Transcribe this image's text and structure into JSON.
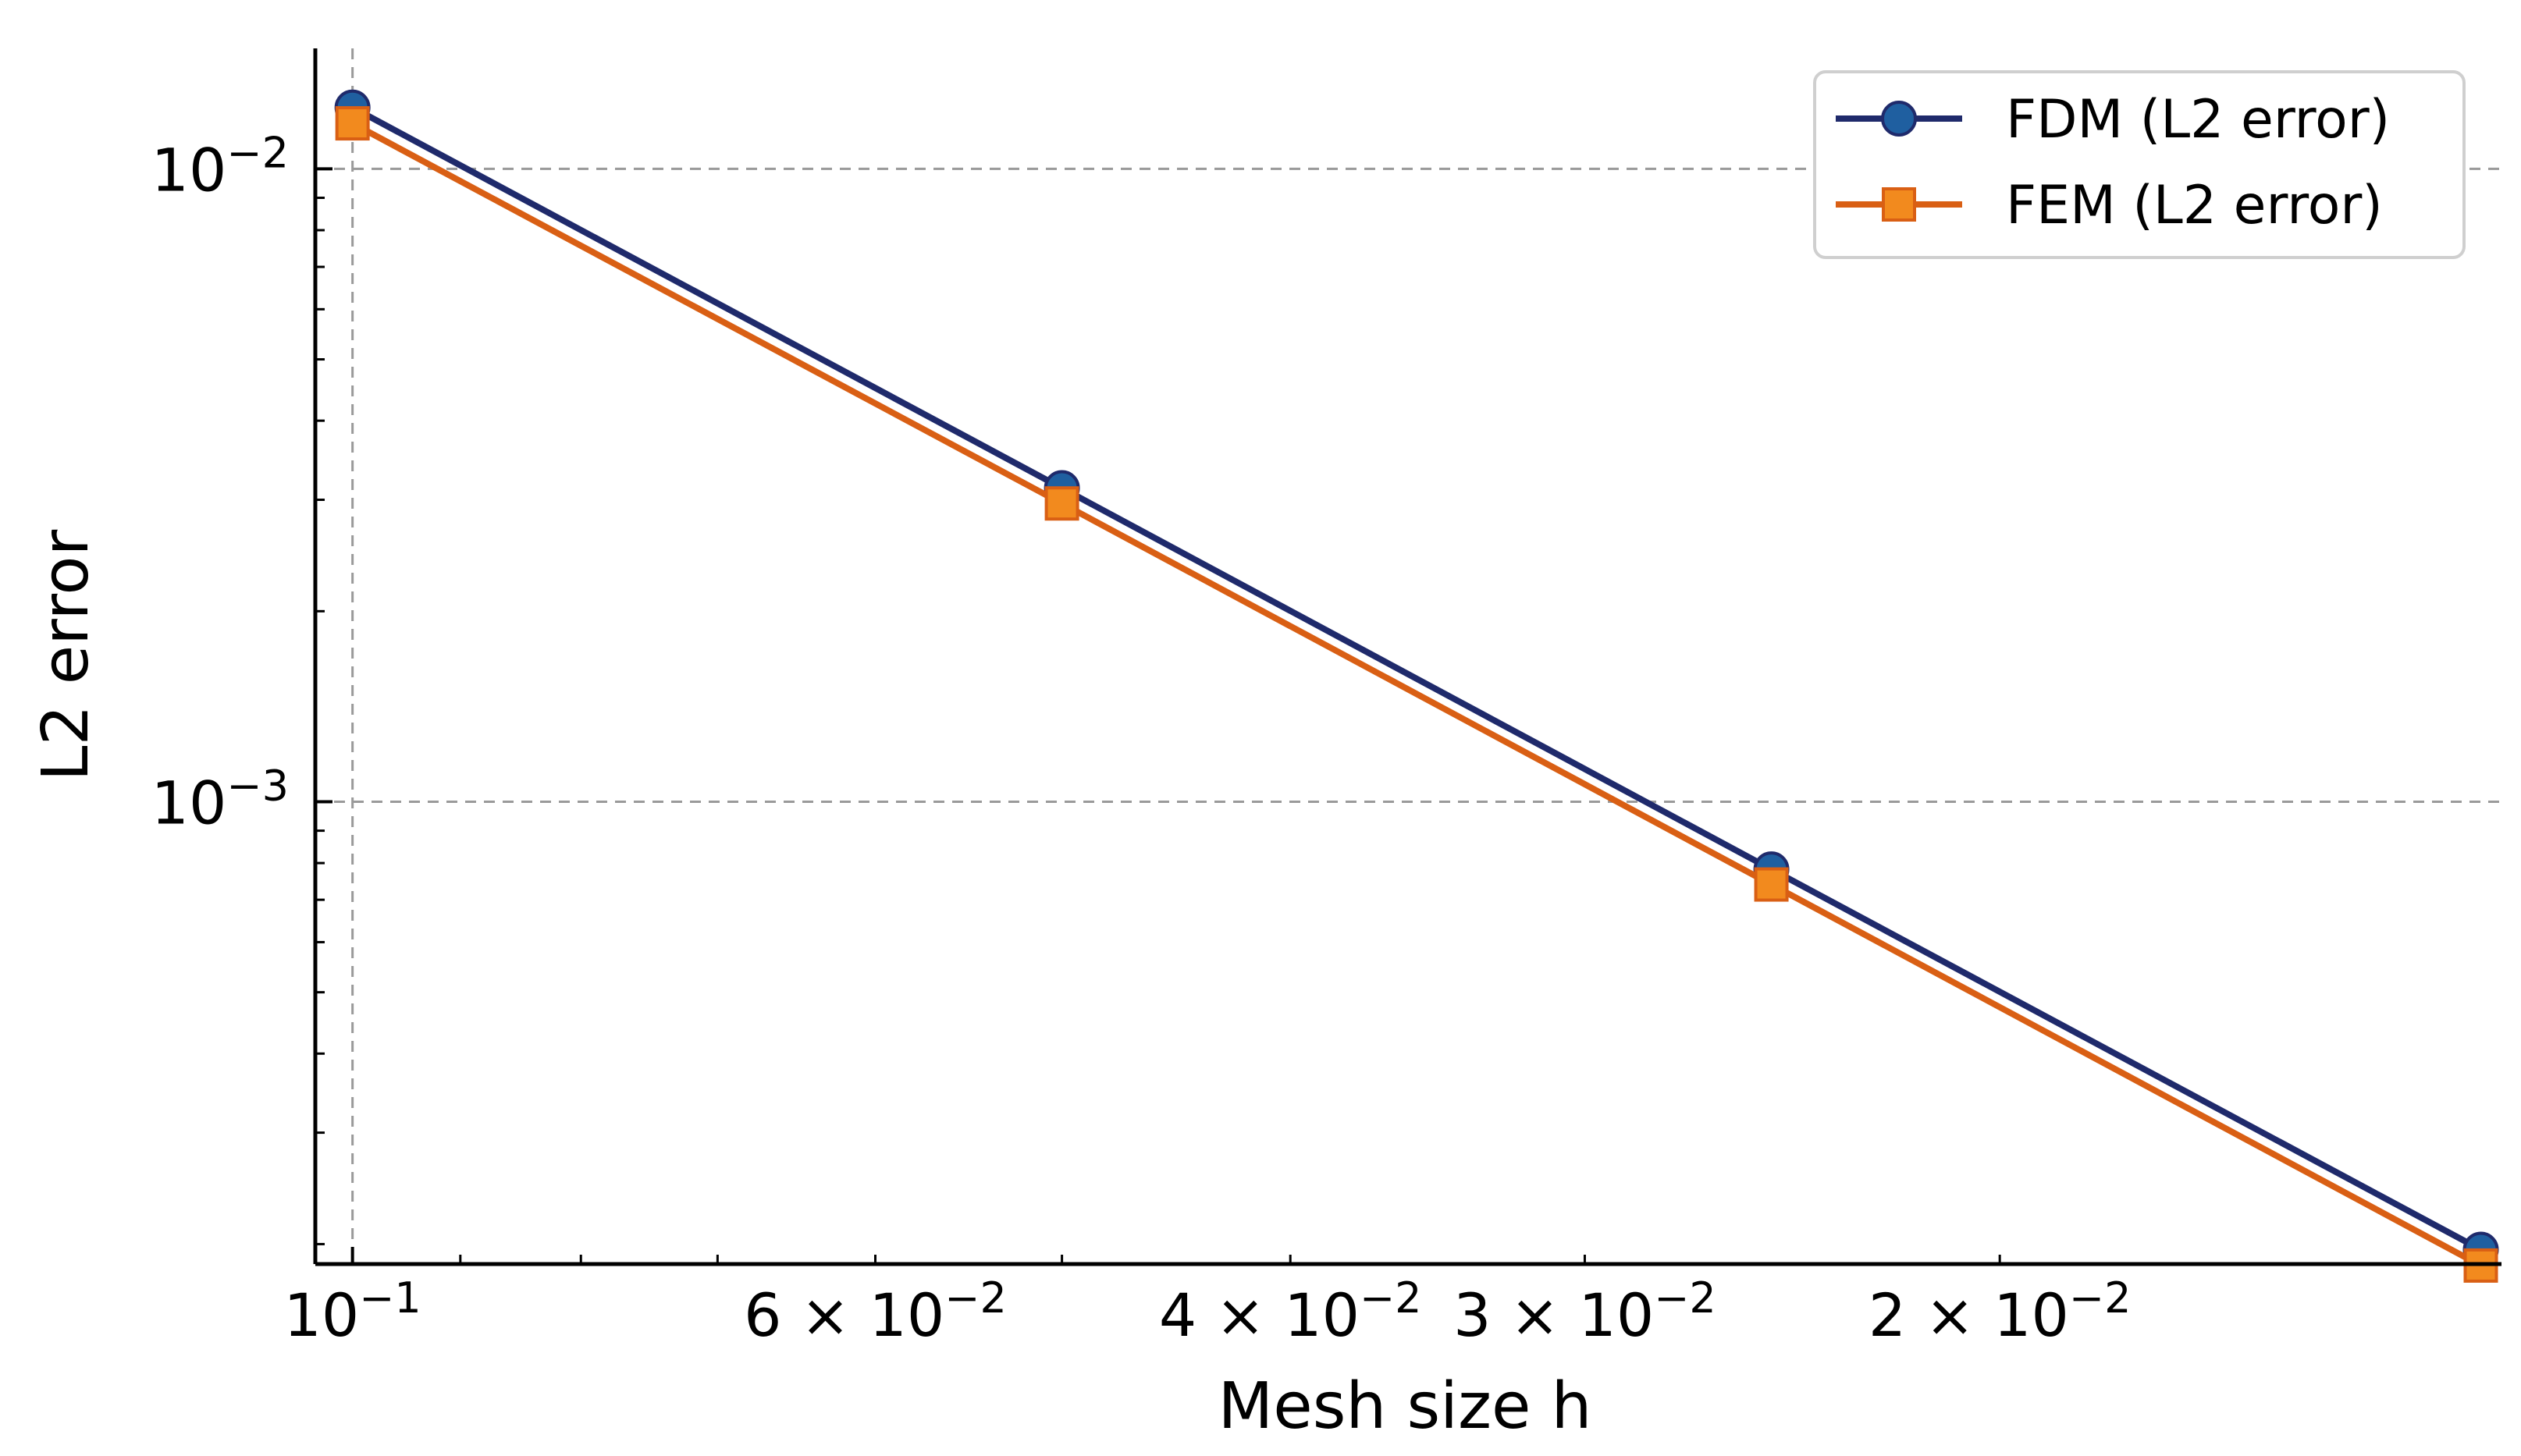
{
  "chart_data": {
    "type": "line",
    "title": "",
    "xlabel": "Mesh size h",
    "ylabel": "L2 error",
    "x_scale": "log",
    "y_scale": "log",
    "x_inverted": true,
    "xlim": [
      0.1037,
      0.01225
    ],
    "ylim": [
      0.000186,
      0.0155
    ],
    "x": [
      0.1,
      0.05,
      0.025,
      0.0125
    ],
    "series": [
      {
        "name": "FDM (L2 error)",
        "marker": "circle",
        "color": "#1f2a6b",
        "marker_color": "#1f5fa0",
        "values": [
          0.0125,
          0.00313,
          0.000782,
          0.000196
        ]
      },
      {
        "name": "FEM (L2 error)",
        "marker": "square",
        "color": "#d95f14",
        "marker_color": "#f28a1e",
        "values": [
          0.0118,
          0.00296,
          0.00074,
          0.000185
        ]
      }
    ],
    "x_ticks": [
      {
        "value": 0.1,
        "mantissa": "",
        "exp": "−1"
      },
      {
        "value": 0.06,
        "mantissa": "6 × ",
        "exp": "−2"
      },
      {
        "value": 0.04,
        "mantissa": "4 × ",
        "exp": "−2"
      },
      {
        "value": 0.03,
        "mantissa": "3 × ",
        "exp": "−2"
      },
      {
        "value": 0.02,
        "mantissa": "2 × ",
        "exp": "−2"
      }
    ],
    "y_ticks": [
      {
        "value": 0.01,
        "exp": "−2"
      },
      {
        "value": 0.001,
        "exp": "−3"
      }
    ],
    "grid": "major, dashed",
    "legend_position": "top-right"
  }
}
